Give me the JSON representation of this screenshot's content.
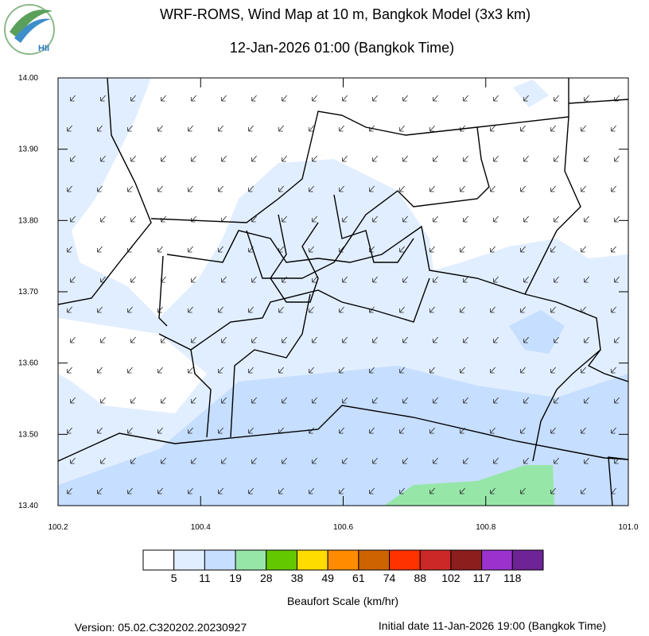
{
  "header": {
    "logo": "HII",
    "title": "WRF-ROMS, Wind Map at 10 m, Bangkok Model (3x3 km)",
    "subtitle": "12-Jan-2026 01:00 (Bangkok Time)"
  },
  "map": {
    "xlim": [
      100.2,
      101.0
    ],
    "ylim": [
      13.4,
      14.0
    ],
    "xticks": [
      {
        "value": 100.2,
        "label": "100.2"
      },
      {
        "value": 100.4,
        "label": "100.4"
      },
      {
        "value": 100.6,
        "label": "100.6"
      },
      {
        "value": 100.8,
        "label": "100.8"
      },
      {
        "value": 101.0,
        "label": "101.0"
      }
    ],
    "yticks": [
      {
        "value": 14.0,
        "label": "14.00"
      },
      {
        "value": 13.9,
        "label": "13.90"
      },
      {
        "value": 13.8,
        "label": "13.80"
      },
      {
        "value": 13.7,
        "label": "13.70"
      },
      {
        "value": 13.6,
        "label": "13.60"
      },
      {
        "value": 13.5,
        "label": "13.50"
      },
      {
        "value": 13.4,
        "label": "13.40"
      }
    ]
  },
  "colorbar": {
    "title": "Beaufort Scale (km/hr)",
    "colors": [
      "#ffffff",
      "#e1eeff",
      "#c6deff",
      "#96e6a8",
      "#64c800",
      "#ffdc00",
      "#ff8c00",
      "#cd6400",
      "#ff3200",
      "#cd2828",
      "#8c1e1e",
      "#9b32cd",
      "#6e2396"
    ],
    "labels": [
      5,
      11,
      19,
      28,
      38,
      49,
      61,
      74,
      88,
      102,
      117,
      118
    ]
  },
  "footer": {
    "version": "Version: 05.02.C320202.20230927",
    "initial": "Initial date 11-Jan-2026 19:00 (Bangkok Time)"
  }
}
